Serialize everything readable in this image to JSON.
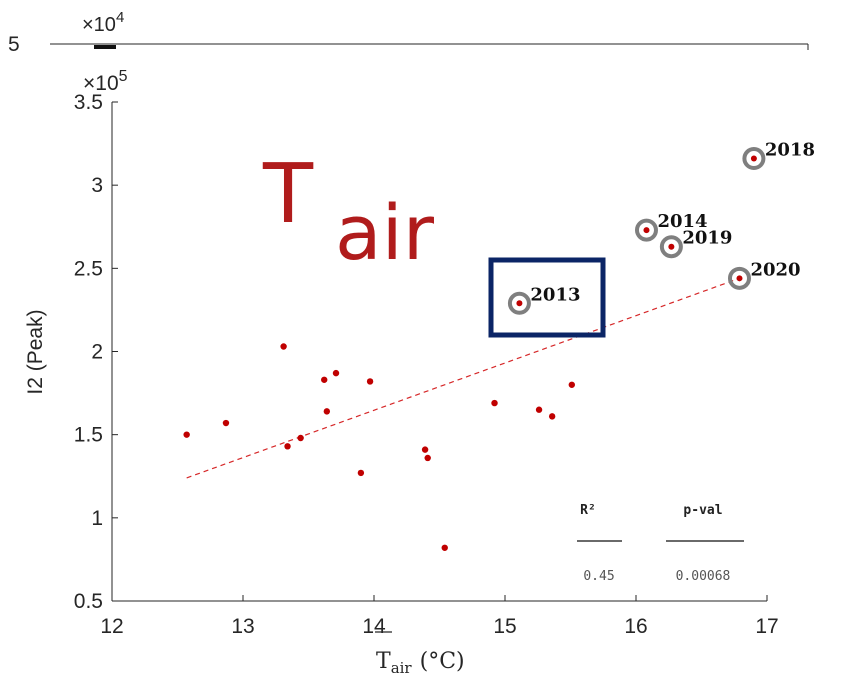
{
  "chart_data": {
    "type": "scatter",
    "title_main": "T",
    "title_sub": "air",
    "xlabel_base": "T",
    "xlabel_sub": "air",
    "xlabel_unit": "(°C)",
    "ylabel": "I2 (Peak)",
    "y_multiplier": "×10",
    "y_multiplier_exp": "5",
    "top_multiplier": "×10",
    "top_multiplier_exp": "4",
    "top_tick": "5",
    "xlim": [
      12,
      17
    ],
    "ylim": [
      0.5,
      3.5
    ],
    "x_ticks": [
      "12",
      "13",
      "14",
      "15",
      "16",
      "17"
    ],
    "y_ticks": [
      "0.5",
      "1",
      "1.5",
      "2",
      "2.5",
      "3",
      "3.5"
    ],
    "points": [
      {
        "x": 12.57,
        "y": 1.5
      },
      {
        "x": 12.87,
        "y": 1.57
      },
      {
        "x": 13.31,
        "y": 2.03
      },
      {
        "x": 13.34,
        "y": 1.43
      },
      {
        "x": 13.44,
        "y": 1.48
      },
      {
        "x": 13.62,
        "y": 1.83
      },
      {
        "x": 13.64,
        "y": 1.64
      },
      {
        "x": 13.71,
        "y": 1.87
      },
      {
        "x": 13.9,
        "y": 1.27
      },
      {
        "x": 13.97,
        "y": 1.82
      },
      {
        "x": 14.39,
        "y": 1.41
      },
      {
        "x": 14.41,
        "y": 1.36
      },
      {
        "x": 14.54,
        "y": 0.82
      },
      {
        "x": 14.92,
        "y": 1.69
      },
      {
        "x": 15.26,
        "y": 1.65
      },
      {
        "x": 15.36,
        "y": 1.61
      },
      {
        "x": 15.51,
        "y": 1.8
      }
    ],
    "labeled_points": [
      {
        "label": "2013",
        "x": 15.11,
        "y": 2.29
      },
      {
        "label": "2014",
        "x": 16.08,
        "y": 2.73
      },
      {
        "label": "2019",
        "x": 16.27,
        "y": 2.63
      },
      {
        "label": "2018",
        "x": 16.9,
        "y": 3.16
      },
      {
        "label": "2020",
        "x": 16.79,
        "y": 2.44
      }
    ],
    "highlighted": "2013",
    "fit_line": {
      "x": [
        12.57,
        16.79
      ],
      "y": [
        1.24,
        2.44
      ]
    },
    "stats": {
      "r2_label": "R²",
      "r2_value": "0.45",
      "p_label": "p-val",
      "p_value": "0.00068"
    },
    "colors": {
      "points": "#c00000",
      "rings": "#7f7f7f",
      "fit": "#d62728",
      "highlight_box": "#0b2566",
      "title": "#b01c1c"
    }
  }
}
